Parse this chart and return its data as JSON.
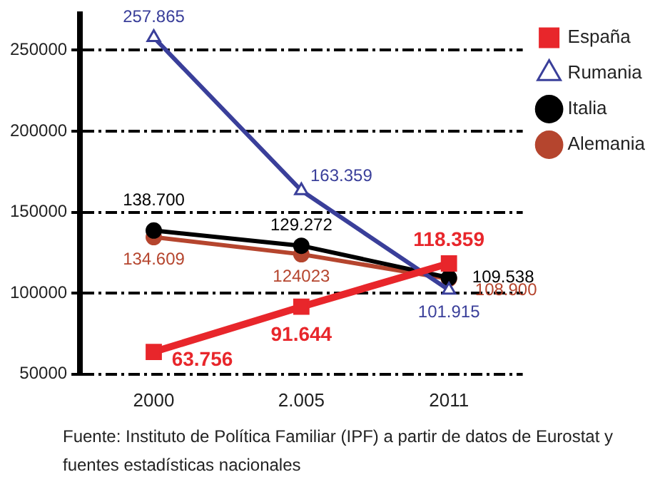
{
  "chart_data": {
    "type": "line",
    "categories": [
      "2000",
      "2.005",
      "2011"
    ],
    "series": [
      {
        "name": "España",
        "color": "#e8262b",
        "marker": "square",
        "values": [
          63756,
          91644,
          118359
        ],
        "value_labels": [
          "63.756",
          "91.644",
          "118.359"
        ]
      },
      {
        "name": "Rumania",
        "color": "#3a3f9a",
        "marker": "triangle",
        "values": [
          257865,
          163359,
          101915
        ],
        "value_labels": [
          "257.865",
          "163.359",
          "101.915"
        ]
      },
      {
        "name": "Italia",
        "color": "#000000",
        "marker": "circle",
        "values": [
          138700,
          129272,
          109538
        ],
        "value_labels": [
          "138.700",
          "129.272",
          "109.538"
        ]
      },
      {
        "name": "Alemania",
        "color": "#b5452e",
        "marker": "circle",
        "values": [
          134609,
          124023,
          108900
        ],
        "value_labels": [
          "134.609",
          "124023",
          "108.900"
        ]
      }
    ],
    "ylim": [
      50000,
      272000
    ],
    "yticks": [
      50000,
      100000,
      150000,
      200000,
      250000
    ],
    "grid": "y",
    "legend": "top right",
    "annotations": [
      "Fuente: Instituto de Política Familiar (IPF) a partir de datos de Eurostat y fuentes estadísticas nacionales"
    ]
  }
}
